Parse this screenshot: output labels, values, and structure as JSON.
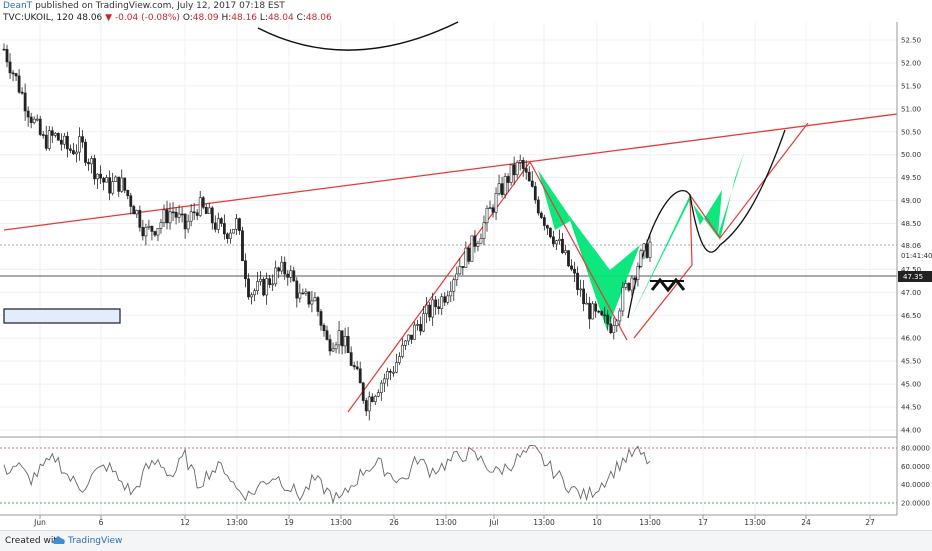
{
  "header": {
    "author": "DeanT",
    "published": "published on TradingView.com, July 12, 2017 07:18 EST",
    "symbol": "TVC:UKOIL, 120",
    "last": "48.06",
    "change": "-0.04 (-0.08%)",
    "o_label": "O:",
    "o_val": "48.09",
    "h_label": "H:",
    "h_val": "48.16",
    "l_label": "L:",
    "l_val": "48.04",
    "c_label": "C:",
    "c_val": "48.06"
  },
  "footer": {
    "created": "Created with",
    "brand": "TradingView"
  },
  "colors": {
    "trend": "#e53935",
    "pattern": "#00e676",
    "up_candle": "#ffffff",
    "down_candle": "#222222",
    "box": "#e3ecfa"
  },
  "chart_data": {
    "type": "candlestick",
    "price_axis": {
      "ticks": [
        "52.50",
        "52.00",
        "51.50",
        "51.00",
        "50.50",
        "50.00",
        "49.50",
        "49.00",
        "48.50",
        "48.06",
        "47.50",
        "47.00",
        "46.50",
        "46.00",
        "45.50",
        "45.00",
        "44.50",
        "44.00"
      ],
      "last_price_label": "48.06",
      "countdown_label": "01:41:40",
      "marked_price_label": "47.35",
      "ylim": [
        43.95,
        52.6
      ]
    },
    "rsi_axis": {
      "ticks": [
        "80.0000",
        "60.0000",
        "40.0000",
        "20.0000"
      ],
      "upper_level": 80,
      "lower_level": 20
    },
    "x_axis": {
      "ticks": [
        "Jun",
        "6",
        "12",
        "13:00",
        "19",
        "13:00",
        "26",
        "13:00",
        "Jul",
        "13:00",
        "10",
        "13:00",
        "17",
        "13:00",
        "24",
        "27"
      ]
    },
    "close_path": [
      52.3,
      51.6,
      50.9,
      50.3,
      50.4,
      50.1,
      50.2,
      49.7,
      49.3,
      49.4,
      48.9,
      48.3,
      48.5,
      48.8,
      48.4,
      48.9,
      48.6,
      48.3,
      48.5,
      47.0,
      47.1,
      47.4,
      47.5,
      46.8,
      46.9,
      45.9,
      46.1,
      45.4,
      44.6,
      45.0,
      45.3,
      45.8,
      46.3,
      46.6,
      46.9,
      47.5,
      47.9,
      48.4,
      49.0,
      49.5,
      49.8,
      49.1,
      48.5,
      48.0,
      47.4,
      46.7,
      46.4,
      46.3,
      47.0,
      47.6,
      48.06
    ],
    "rsi_path": [
      55,
      62,
      45,
      58,
      70,
      48,
      36,
      52,
      61,
      44,
      30,
      57,
      66,
      48,
      72,
      40,
      55,
      60,
      35,
      28,
      42,
      50,
      38,
      27,
      46,
      33,
      22,
      41,
      58,
      63,
      50,
      44,
      69,
      55,
      61,
      70,
      74,
      66,
      53,
      60,
      71,
      78,
      62,
      48,
      35,
      27,
      38,
      52,
      68,
      76,
      64
    ]
  }
}
